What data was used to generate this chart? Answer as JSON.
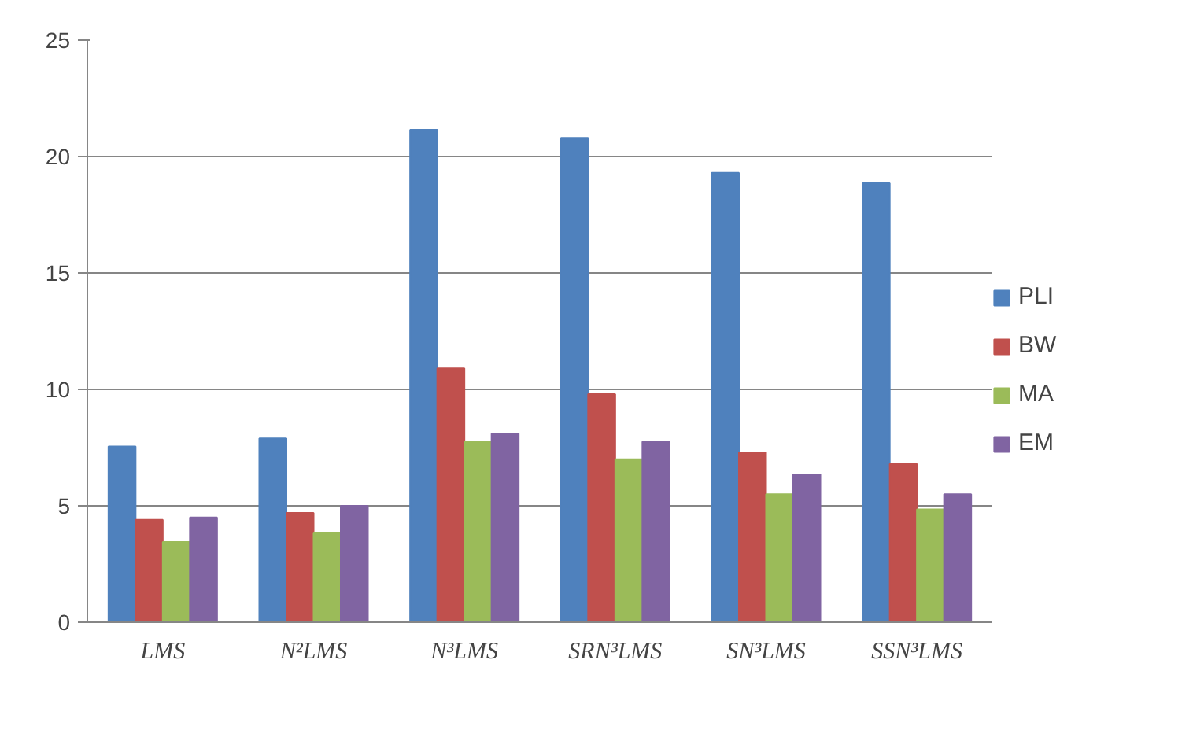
{
  "chart_data": {
    "type": "bar",
    "categories": [
      "LMS",
      "N²LMS",
      "N³LMS",
      "SRN³LMS",
      "SN³LMS",
      "SSN³LMS"
    ],
    "series": [
      {
        "name": "PLI",
        "color": "#4f81bd",
        "values": [
          7.55,
          7.9,
          21.15,
          20.8,
          19.3,
          18.85
        ]
      },
      {
        "name": "BW",
        "color": "#c0504d",
        "values": [
          4.4,
          4.7,
          10.9,
          9.8,
          7.3,
          6.8
        ]
      },
      {
        "name": "MA",
        "color": "#9bbb59",
        "values": [
          3.45,
          3.85,
          7.75,
          7.0,
          5.5,
          4.85
        ]
      },
      {
        "name": "EM",
        "color": "#8064a2",
        "values": [
          4.5,
          5.0,
          8.1,
          7.75,
          6.35,
          5.5
        ]
      }
    ],
    "ylim": [
      0,
      25
    ],
    "yticks": [
      0,
      5,
      10,
      15,
      20,
      25
    ],
    "grid": "y",
    "legend": "right"
  }
}
